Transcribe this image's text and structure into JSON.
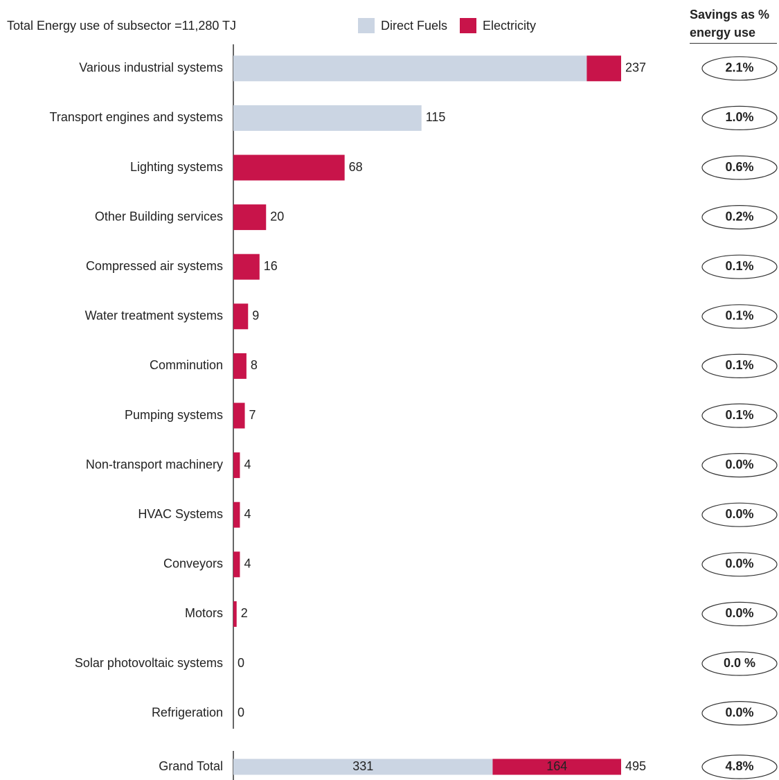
{
  "chart_data": [
    {
      "type": "bar",
      "orientation": "horizontal",
      "stacked": true,
      "title": "Total Energy use of subsector =11,280 TJ",
      "categories": [
        "Various industrial systems",
        "Transport engines and systems",
        "Lighting systems",
        "Other Building services",
        "Compressed air systems",
        "Water treatment systems",
        "Comminution",
        "Pumping systems",
        "Non-transport machinery",
        "HVAC Systems",
        "Conveyors",
        "Motors",
        "Solar photovoltaic systems",
        "Refrigeration"
      ],
      "series": [
        {
          "name": "Direct Fuels",
          "color": "#cbd5e3",
          "values": [
            216,
            115,
            0,
            0,
            0,
            0,
            0,
            0,
            0,
            0,
            0,
            0,
            0,
            0
          ]
        },
        {
          "name": "Electricity",
          "color": "#c8144a",
          "values": [
            21,
            0,
            68,
            20,
            16,
            9,
            8,
            7,
            4,
            4,
            4,
            2,
            0,
            0
          ]
        }
      ],
      "totals": [
        237,
        115,
        68,
        20,
        16,
        9,
        8,
        7,
        4,
        4,
        4,
        2,
        0,
        0
      ],
      "xlim": [
        0,
        237
      ],
      "savings_title": "Savings as % energy use",
      "savings": [
        2.1,
        1.0,
        0.6,
        0.2,
        0.1,
        0.1,
        0.1,
        0.1,
        0.0,
        0.0,
        0.0,
        0.0,
        0.0,
        0.0
      ],
      "savings_labels": [
        "2.1%",
        "1.0%",
        "0.6%",
        "0.2%",
        "0.1%",
        "0.1%",
        "0.1%",
        "0.1%",
        "0.0%",
        "0.0%",
        "0.0%",
        "0.0%",
        "0.0 %",
        "0.0%"
      ],
      "segment_labels": false
    },
    {
      "type": "bar",
      "orientation": "horizontal",
      "stacked": true,
      "categories": [
        "Grand Total"
      ],
      "series": [
        {
          "name": "Direct Fuels",
          "color": "#cbd5e3",
          "values": [
            331
          ]
        },
        {
          "name": "Electricity",
          "color": "#c8144a",
          "values": [
            164
          ]
        }
      ],
      "totals": [
        495
      ],
      "xlim": [
        0,
        495
      ],
      "savings": [
        4.8
      ],
      "savings_labels": [
        "4.8%"
      ],
      "segment_labels": true
    }
  ]
}
